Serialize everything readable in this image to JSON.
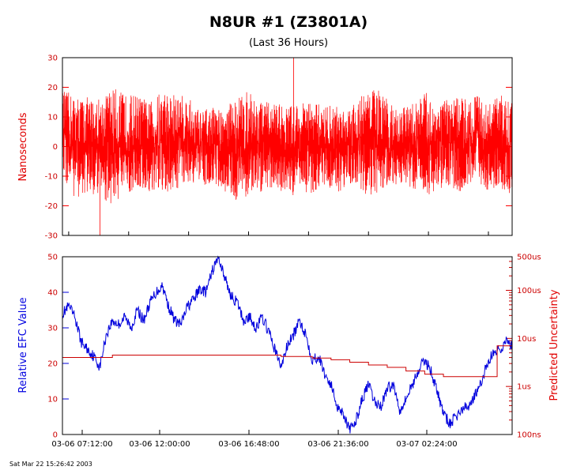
{
  "title": "N8UR  #1 (Z3801A)",
  "subtitle": "(Last 36 Hours)",
  "footer": "Sat Mar 22 15:26:42 2003",
  "colors": {
    "phase": "#ff0000",
    "efc": "#0000dd",
    "uncertainty": "#cc0000",
    "frame": "#000000"
  },
  "chart_data": [
    {
      "type": "line",
      "ylabel": "Nanoseconds",
      "ylim": [
        -30,
        30
      ],
      "yticks": [
        -30,
        -20,
        -10,
        0,
        10,
        20,
        30
      ],
      "xlim": [
        0,
        36
      ],
      "series": [
        {
          "color": "#ff0000",
          "x": [
            0,
            1,
            2,
            3,
            4,
            5,
            6,
            7,
            8,
            9,
            10,
            11,
            12,
            13,
            14,
            15,
            16,
            17,
            18,
            19,
            20,
            21,
            22,
            23,
            24,
            25,
            26,
            27,
            28,
            29,
            30,
            31,
            32,
            33,
            34,
            35,
            36
          ],
          "envelope_max": [
            21,
            20,
            19,
            19,
            23,
            20,
            20,
            17,
            22,
            20,
            19,
            14,
            15,
            15,
            20,
            21,
            17,
            17,
            16,
            17,
            17,
            16,
            16,
            16,
            20,
            23,
            18,
            14,
            17,
            21,
            17,
            18,
            19,
            20,
            16,
            20,
            19
          ],
          "envelope_min": [
            -13,
            -20,
            -19,
            -19,
            -23,
            -19,
            -17,
            -18,
            -20,
            -17,
            -14,
            -15,
            -14,
            -17,
            -21,
            -19,
            -18,
            -15,
            -20,
            -17,
            -18,
            -15,
            -18,
            -14,
            -18,
            -20,
            -16,
            -14,
            -16,
            -20,
            -17,
            -15,
            -19,
            -13,
            -17,
            -16,
            -20
          ],
          "peaks": {
            "max": 30,
            "min": -30
          }
        }
      ]
    },
    {
      "type": "line",
      "ylabel": "Relative EFC Value",
      "ylabel_right": "Predicted Uncertainty",
      "ylim": [
        0,
        50
      ],
      "yticks": [
        0,
        10,
        20,
        30,
        40,
        50
      ],
      "y2scale": "log",
      "y2ticks": [
        "500us",
        "100us",
        "10us",
        "1us",
        "100ns"
      ],
      "xticks": [
        "03-06 07:12:00",
        "03-06 12:00:00",
        "03-06 16:48:00",
        "03-06 21:36:00",
        "03-07 02:24:00"
      ],
      "series": [
        {
          "name": "Relative EFC Value",
          "color": "#0000dd",
          "x": [
            0,
            0.5,
            1,
            1.5,
            2,
            2.5,
            3,
            3.5,
            4,
            4.5,
            5,
            5.5,
            6,
            6.5,
            7,
            7.5,
            8,
            8.5,
            9,
            9.5,
            10,
            10.5,
            11,
            11.5,
            12,
            12.5,
            13,
            13.5,
            14,
            14.5,
            15,
            15.5,
            16,
            16.5,
            17,
            17.5,
            18,
            18.5,
            19,
            19.5,
            20,
            20.5,
            21,
            21.5,
            22,
            22.5,
            23,
            23.5,
            24,
            24.5,
            25,
            25.5,
            26,
            26.5,
            27,
            27.5,
            28,
            28.5,
            29,
            29.5,
            30,
            30.5,
            31,
            31.5,
            32,
            32.5,
            33,
            33.5,
            34,
            34.5,
            35,
            35.5,
            36
          ],
          "y": [
            34,
            36,
            33,
            26,
            24,
            22,
            19,
            28,
            32,
            31,
            33,
            30,
            35,
            32,
            37,
            40,
            42,
            36,
            32,
            31,
            36,
            38,
            41,
            40,
            46,
            50,
            44,
            39,
            37,
            32,
            33,
            30,
            33,
            29,
            24,
            19,
            25,
            28,
            32,
            28,
            21,
            22,
            17,
            14,
            8,
            6,
            1,
            4,
            10,
            14,
            9,
            8,
            13,
            14,
            7,
            10,
            14,
            18,
            21,
            18,
            12,
            6,
            3,
            5,
            7,
            8,
            11,
            14,
            20,
            23,
            24,
            26,
            25
          ],
          "x_offset_hours": 0
        },
        {
          "name": "Predicted Uncertainty",
          "color": "#cc0000",
          "x": [
            0,
            3.7,
            4,
            9,
            12,
            16,
            17.5,
            20,
            21.5,
            23,
            24.5,
            26,
            27.5,
            29,
            30.5,
            32,
            33.5,
            34.8,
            36
          ],
          "y_us": [
            4,
            4,
            4.5,
            4.5,
            4.5,
            4.5,
            4.2,
            3.9,
            3.6,
            3.2,
            2.8,
            2.5,
            2.1,
            1.8,
            1.6,
            1.6,
            1.6,
            7,
            5
          ]
        }
      ]
    }
  ]
}
